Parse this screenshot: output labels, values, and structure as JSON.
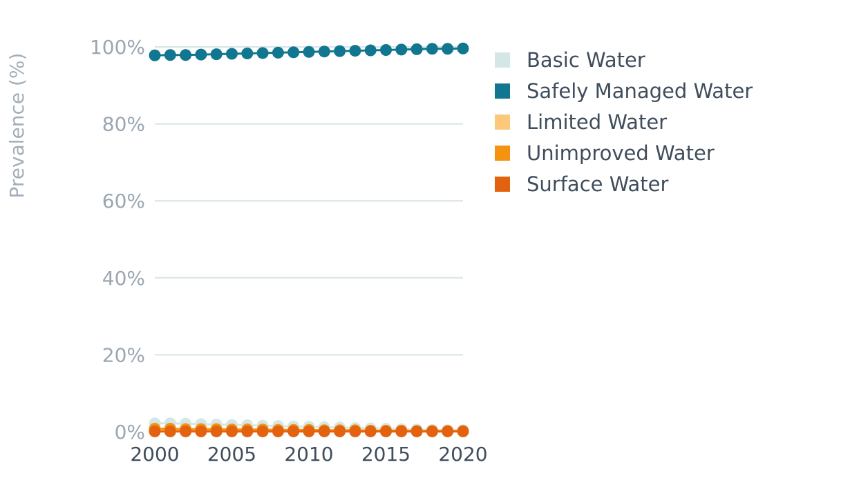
{
  "chart_data": {
    "type": "line",
    "title": "",
    "xlabel": "",
    "ylabel": "Prevalence (%)",
    "x": [
      2000,
      2001,
      2002,
      2003,
      2004,
      2005,
      2006,
      2007,
      2008,
      2009,
      2010,
      2011,
      2012,
      2013,
      2014,
      2015,
      2016,
      2017,
      2018,
      2019,
      2020
    ],
    "x_ticks": [
      "2000",
      "2005",
      "2010",
      "2015",
      "2020"
    ],
    "x_tick_values": [
      2000,
      2005,
      2010,
      2015,
      2020
    ],
    "y_ticks": [
      "0%",
      "20%",
      "40%",
      "60%",
      "80%",
      "100%"
    ],
    "y_tick_values": [
      0,
      20,
      40,
      60,
      80,
      100
    ],
    "ylim": [
      0,
      100
    ],
    "xlim": [
      2000,
      2020
    ],
    "grid": true,
    "legend_position": "right",
    "series": [
      {
        "name": "Basic Water",
        "color": "#d3e8e6",
        "values": [
          2.2,
          2.2,
          2.1,
          2.0,
          1.9,
          1.8,
          1.7,
          1.6,
          1.5,
          1.4,
          1.3,
          1.2,
          1.1,
          1.0,
          0.9,
          0.8,
          0.7,
          0.6,
          0.5,
          0.4,
          0.4
        ]
      },
      {
        "name": "Safely Managed Water",
        "color": "#11768f",
        "values": [
          97.8,
          97.9,
          97.9,
          98.0,
          98.1,
          98.2,
          98.3,
          98.4,
          98.5,
          98.6,
          98.7,
          98.8,
          98.9,
          99.0,
          99.1,
          99.2,
          99.3,
          99.4,
          99.5,
          99.5,
          99.6
        ]
      },
      {
        "name": "Limited Water",
        "color": "#fcc97a",
        "values": [
          0.5,
          0.5,
          0.5,
          0.5,
          0.5,
          0.4,
          0.4,
          0.4,
          0.4,
          0.4,
          0.3,
          0.3,
          0.3,
          0.3,
          0.3,
          0.2,
          0.2,
          0.2,
          0.2,
          0.2,
          0.2
        ]
      },
      {
        "name": "Unimproved Water",
        "color": "#f59211",
        "values": [
          0.8,
          0.8,
          0.7,
          0.7,
          0.7,
          0.6,
          0.6,
          0.6,
          0.5,
          0.5,
          0.5,
          0.4,
          0.4,
          0.4,
          0.3,
          0.3,
          0.3,
          0.2,
          0.2,
          0.2,
          0.2
        ]
      },
      {
        "name": "Surface Water",
        "color": "#e3620f",
        "values": [
          0.1,
          0.1,
          0.1,
          0.1,
          0.1,
          0.1,
          0.1,
          0.1,
          0.1,
          0.1,
          0.1,
          0.1,
          0.1,
          0.1,
          0.1,
          0.1,
          0.1,
          0.1,
          0.1,
          0.1,
          0.1
        ]
      }
    ]
  }
}
